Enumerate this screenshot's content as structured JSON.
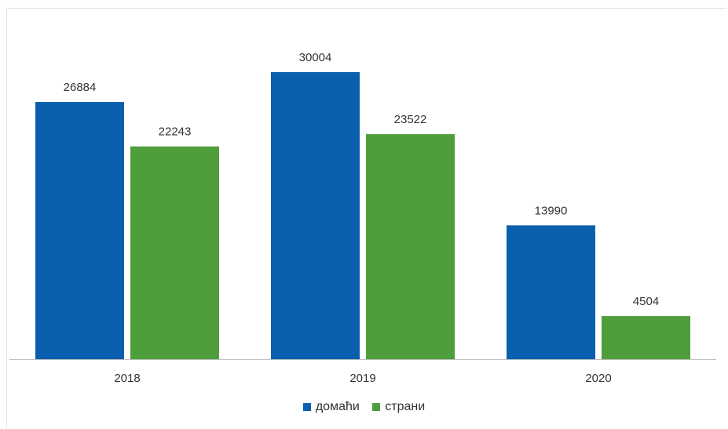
{
  "chart_data": {
    "type": "bar",
    "categories": [
      "2018",
      "2019",
      "2020"
    ],
    "series": [
      {
        "name": "домаћи",
        "values": [
          26884,
          30004,
          13990
        ],
        "color": "#0a5fae"
      },
      {
        "name": "страни",
        "values": [
          22243,
          23522,
          4504
        ],
        "color": "#4f9e3c"
      }
    ],
    "ylim": [
      0,
      33000
    ],
    "grid": false,
    "legend_position": "bottom-center",
    "data_labels": true,
    "title": "",
    "xlabel": "",
    "ylabel": ""
  }
}
